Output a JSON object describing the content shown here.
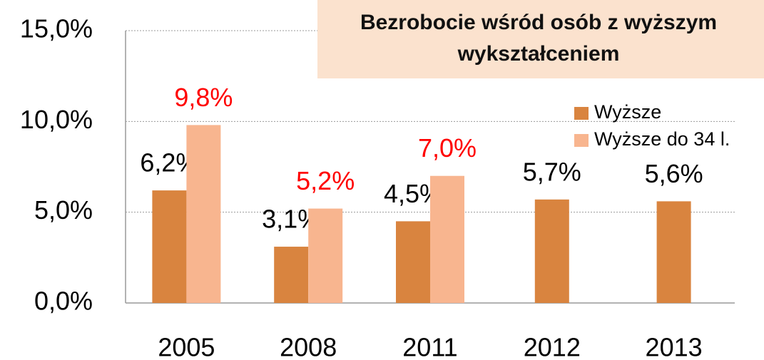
{
  "chart_data": {
    "type": "bar",
    "title": "Bezrobocie wśród osób  z wyższym wykształceniem",
    "categories": [
      "2005",
      "2008",
      "2011",
      "2012",
      "2013"
    ],
    "series": [
      {
        "name": "Wyższe",
        "color": "#d9843f",
        "label_color": "#000000",
        "values": [
          6.2,
          3.1,
          4.5,
          5.7,
          5.6
        ],
        "value_labels": [
          "6,2%",
          "3,1%",
          "4,5%",
          "5,7%",
          "5,6%"
        ]
      },
      {
        "name": "Wyższe do 34 l.",
        "color": "#f8b58f",
        "label_color": "#ff0000",
        "values": [
          9.8,
          5.2,
          7.0,
          null,
          null
        ],
        "value_labels": [
          "9,8%",
          "5,2%",
          "7,0%",
          null,
          null
        ]
      }
    ],
    "ylim": [
      0,
      15
    ],
    "yticks": [
      {
        "value": 0,
        "label": "0,0%"
      },
      {
        "value": 5,
        "label": "5,0%"
      },
      {
        "value": 10,
        "label": "10,0%"
      },
      {
        "value": 15,
        "label": "15,0%"
      }
    ],
    "grid": true
  }
}
